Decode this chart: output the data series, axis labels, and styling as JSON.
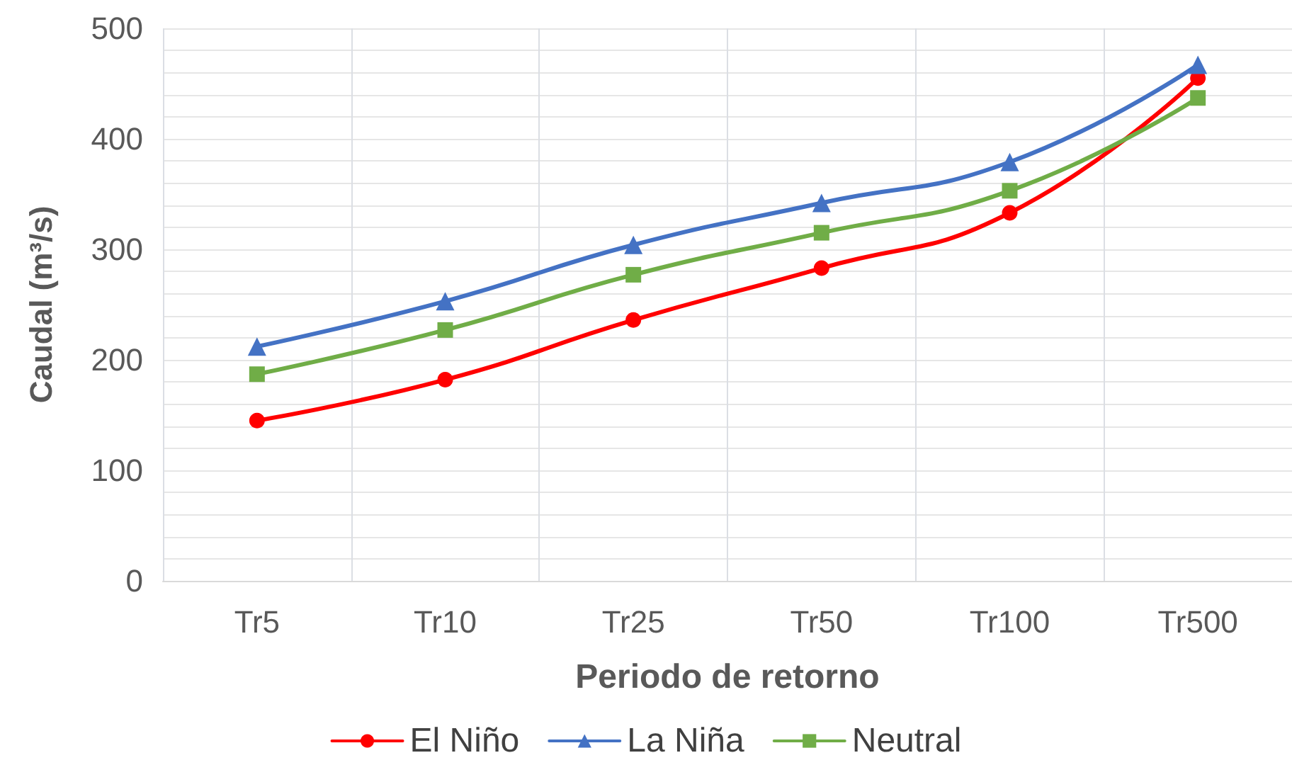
{
  "chart_data": {
    "type": "line",
    "xlabel": "Periodo de retorno",
    "ylabel": "Caudal (m³/s)",
    "categories": [
      "Tr5",
      "Tr10",
      "Tr25",
      "Tr50",
      "Tr100",
      "Tr500"
    ],
    "series": [
      {
        "name": "El Niño",
        "color": "#ff0000",
        "marker": "circle",
        "values": [
          145,
          182,
          236,
          283,
          333,
          455
        ]
      },
      {
        "name": "La Niña",
        "color": "#4472c4",
        "marker": "triangle",
        "values": [
          212,
          253,
          304,
          342,
          379,
          467
        ]
      },
      {
        "name": "Neutral",
        "color": "#70ad47",
        "marker": "square",
        "values": [
          187,
          227,
          277,
          315,
          353,
          437
        ]
      }
    ],
    "ylim": [
      0,
      500
    ],
    "yticks": [
      0,
      {
        "value": 20,
        "label": null
      },
      {
        "value": 40,
        "label": null
      },
      {
        "value": 60,
        "label": null
      },
      {
        "value": 80,
        "label": null
      },
      100,
      {
        "value": 120,
        "label": null
      },
      {
        "value": 140,
        "label": null
      },
      {
        "value": 160,
        "label": null
      },
      {
        "value": 180,
        "label": null
      },
      200,
      {
        "value": 220,
        "label": null
      },
      {
        "value": 240,
        "label": null
      },
      {
        "value": 260,
        "label": null
      },
      {
        "value": 280,
        "label": null
      },
      300,
      {
        "value": 320,
        "label": null
      },
      {
        "value": 340,
        "label": null
      },
      {
        "value": 360,
        "label": null
      },
      {
        "value": 380,
        "label": null
      },
      400,
      {
        "value": 420,
        "label": null
      },
      {
        "value": 440,
        "label": null
      },
      {
        "value": 460,
        "label": null
      },
      {
        "value": 480,
        "label": null
      },
      500
    ],
    "grid": true,
    "legend": "bottom",
    "line_style": "solid"
  }
}
